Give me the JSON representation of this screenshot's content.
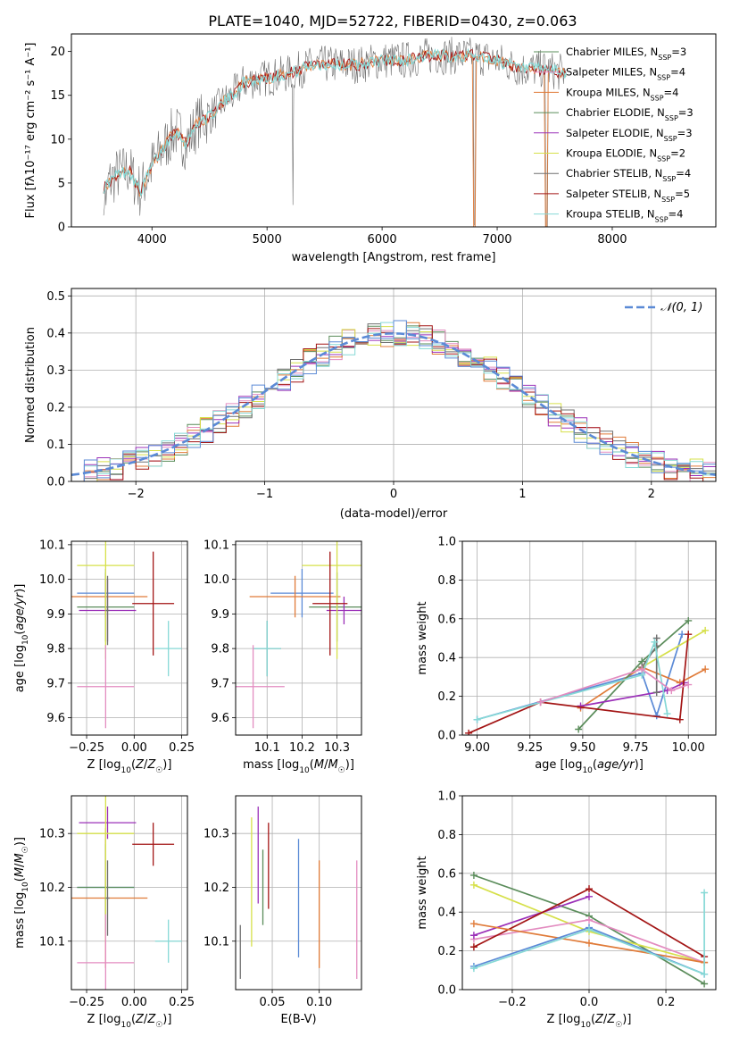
{
  "figure_title": "PLATE=1040, MJD=52722, FIBERID=0430, z=0.063",
  "colors": {
    "blue": "#5b8ad6",
    "orange": "#e07b39",
    "green": "#5a8c5a",
    "purple": "#9b30b8",
    "yellow": "#d6e04a",
    "gray": "#707070",
    "red": "#a31515",
    "cyan": "#86d9d6",
    "pink": "#e38cc0"
  },
  "chart_data": [
    {
      "type": "line",
      "panel": "spectrum",
      "xlabel": "wavelength [Angstrom, rest frame]",
      "ylabel": "Flux [fλ10⁻¹⁷ erg cm⁻² s⁻¹ A⁻¹]",
      "xlim": [
        3300,
        8900
      ],
      "ylim": [
        0,
        22
      ],
      "xticks": [
        4000,
        5000,
        6000,
        7000,
        8000
      ],
      "yticks": [
        0,
        5,
        10,
        15,
        20
      ],
      "grid": false,
      "legend_position": "right",
      "continuum": {
        "x": [
          3580,
          3700,
          3800,
          3900,
          4000,
          4100,
          4200,
          4300,
          4400,
          4500,
          4600,
          4700,
          4800,
          5000,
          5200,
          5400,
          5600,
          5800,
          6000,
          6200,
          6400,
          6600,
          6800,
          7000,
          7200,
          7400,
          7600
        ],
        "y": [
          4.5,
          6,
          6.5,
          4,
          7,
          9,
          11,
          9.5,
          12,
          12.5,
          14,
          15,
          16.5,
          17,
          17.5,
          18.5,
          18.5,
          18.5,
          19,
          19,
          19.5,
          19.5,
          19.5,
          19,
          18,
          18,
          17.5
        ]
      },
      "series": [
        {
          "name": "Chabrier MILES, N",
          "sub": "SSP",
          "suffix": "=3",
          "color": "#5a8c5a"
        },
        {
          "name": "Salpeter MILES, N",
          "sub": "SSP",
          "suffix": "=4",
          "color": "#e38cc0"
        },
        {
          "name": "Kroupa MILES, N",
          "sub": "SSP",
          "suffix": "=4",
          "color": "#e07b39"
        },
        {
          "name": "Chabrier ELODIE, N",
          "sub": "SSP",
          "suffix": "=3",
          "color": "#5a8c5a"
        },
        {
          "name": "Salpeter ELODIE, N",
          "sub": "SSP",
          "suffix": "=3",
          "color": "#9b30b8"
        },
        {
          "name": "Kroupa ELODIE, N",
          "sub": "SSP",
          "suffix": "=2",
          "color": "#d6e04a"
        },
        {
          "name": "Chabrier STELIB, N",
          "sub": "SSP",
          "suffix": "=4",
          "color": "#707070"
        },
        {
          "name": "Salpeter STELIB, N",
          "sub": "SSP",
          "suffix": "=5",
          "color": "#a31515"
        },
        {
          "name": "Kroupa STELIB, N",
          "sub": "SSP",
          "suffix": "=4",
          "color": "#86d9d6"
        }
      ]
    },
    {
      "type": "bar",
      "panel": "residuals",
      "xlabel": "(data-model)/error",
      "ylabel": "Normed distribution",
      "xlim": [
        -2.5,
        2.5
      ],
      "ylim": [
        0,
        0.52
      ],
      "xticks": [
        -2,
        -1,
        0,
        1,
        2
      ],
      "yticks": [
        0.0,
        0.1,
        0.2,
        0.3,
        0.4,
        0.5
      ],
      "grid": true,
      "legend_position": "top-right",
      "legend": "𝒩(0, 1)",
      "bin_width": 0.1,
      "normal_curve_color": "#5b8ad6"
    },
    {
      "type": "scatter",
      "panel": "age_vs_Z",
      "xlabel": "Z [log₁₀(Z/Z☉)]",
      "ylabel": "age  [log₁₀(age/yr)]",
      "xlim": [
        -0.33,
        0.28
      ],
      "ylim": [
        9.55,
        10.11
      ],
      "xticks": [
        -0.25,
        0.0,
        0.25
      ],
      "yticks": [
        9.6,
        9.7,
        9.8,
        9.9,
        10.0,
        10.1
      ],
      "grid": true,
      "points": [
        {
          "x": -0.15,
          "y": 9.96,
          "xerr": 0.15,
          "yerr": 0.07,
          "color": "#5b8ad6"
        },
        {
          "x": -0.15,
          "y": 9.95,
          "xerr": 0.22,
          "yerr": 0.06,
          "color": "#e07b39"
        },
        {
          "x": -0.15,
          "y": 9.92,
          "xerr": 0.15,
          "yerr": 0.1,
          "color": "#5a8c5a"
        },
        {
          "x": -0.14,
          "y": 9.91,
          "xerr": 0.15,
          "yerr": 0.09,
          "color": "#9b30b8"
        },
        {
          "x": -0.15,
          "y": 10.04,
          "xerr": 0.15,
          "yerr": 0.27,
          "color": "#d6e04a"
        },
        {
          "x": -0.14,
          "y": 9.91,
          "xerr": 0.01,
          "yerr": 0.1,
          "color": "#707070"
        },
        {
          "x": 0.1,
          "y": 9.93,
          "xerr": 0.11,
          "yerr": 0.15,
          "color": "#a31515"
        },
        {
          "x": 0.18,
          "y": 9.8,
          "xerr": 0.07,
          "yerr": 0.08,
          "color": "#86d9d6"
        },
        {
          "x": -0.15,
          "y": 9.69,
          "xerr": 0.15,
          "yerr": 0.12,
          "color": "#e38cc0"
        }
      ]
    },
    {
      "type": "scatter",
      "panel": "age_vs_mass",
      "xlabel": "mass [log₁₀(M/M☉)]",
      "ylabel": "",
      "xlim": [
        10.01,
        10.37
      ],
      "ylim": [
        9.55,
        10.11
      ],
      "xticks": [
        10.1,
        10.2,
        10.3
      ],
      "yticks": [
        9.6,
        9.7,
        9.8,
        9.9,
        10.0,
        10.1
      ],
      "grid": true,
      "points": [
        {
          "x": 10.2,
          "y": 9.96,
          "xerr": 0.09,
          "yerr": 0.07,
          "color": "#5b8ad6"
        },
        {
          "x": 10.18,
          "y": 9.95,
          "xerr": 0.13,
          "yerr": 0.06,
          "color": "#e07b39"
        },
        {
          "x": 10.3,
          "y": 9.92,
          "xerr": 0.08,
          "yerr": 0.1,
          "color": "#5a8c5a"
        },
        {
          "x": 10.32,
          "y": 9.91,
          "xerr": 0.05,
          "yerr": 0.04,
          "color": "#9b30b8"
        },
        {
          "x": 10.3,
          "y": 10.04,
          "xerr": 0.1,
          "yerr": 0.27,
          "color": "#d6e04a"
        },
        {
          "x": 10.1,
          "y": 9.8,
          "xerr": 0.04,
          "yerr": 0.08,
          "color": "#707070"
        },
        {
          "x": 10.28,
          "y": 9.93,
          "xerr": 0.05,
          "yerr": 0.15,
          "color": "#a31515"
        },
        {
          "x": 10.1,
          "y": 9.8,
          "xerr": 0.04,
          "yerr": 0.08,
          "color": "#86d9d6"
        },
        {
          "x": 10.06,
          "y": 9.69,
          "xerr": 0.09,
          "yerr": 0.12,
          "color": "#e38cc0"
        }
      ]
    },
    {
      "type": "line",
      "panel": "mass_weight_vs_age",
      "xlabel": "age  [log₁₀(age/yr)]",
      "ylabel": "mass weight",
      "xlim": [
        8.93,
        10.13
      ],
      "ylim": [
        0,
        1.0
      ],
      "xticks": [
        9.0,
        9.25,
        9.5,
        9.75,
        10.0
      ],
      "yticks": [
        0.0,
        0.2,
        0.4,
        0.6,
        0.8,
        1.0
      ],
      "grid": true,
      "series": [
        {
          "color": "#5b8ad6",
          "x": [
            9.0,
            9.78,
            9.85,
            9.97
          ],
          "y": [
            0.08,
            0.32,
            0.1,
            0.52
          ]
        },
        {
          "color": "#e07b39",
          "x": [
            9.49,
            9.78,
            9.96,
            10.08
          ],
          "y": [
            0.14,
            0.35,
            0.27,
            0.34
          ]
        },
        {
          "color": "#5a8c5a",
          "x": [
            9.48,
            9.78,
            10.0
          ],
          "y": [
            0.03,
            0.38,
            0.59
          ]
        },
        {
          "color": "#9b30b8",
          "x": [
            9.49,
            9.9,
            9.98
          ],
          "y": [
            0.15,
            0.23,
            0.27
          ]
        },
        {
          "color": "#d6e04a",
          "x": [
            9.78,
            10.08
          ],
          "y": [
            0.35,
            0.54
          ]
        },
        {
          "color": "#707070",
          "x": [
            9.78,
            9.85,
            9.85,
            9.85
          ],
          "y": [
            0.35,
            0.46,
            0.5,
            0.22
          ]
        },
        {
          "color": "#a31515",
          "x": [
            8.96,
            9.3,
            9.96,
            10.0
          ],
          "y": [
            0.01,
            0.17,
            0.08,
            0.52
          ]
        },
        {
          "color": "#86d9d6",
          "x": [
            9.0,
            9.78,
            9.84,
            9.9
          ],
          "y": [
            0.08,
            0.31,
            0.48,
            0.11
          ]
        },
        {
          "color": "#e38cc0",
          "x": [
            9.3,
            9.78,
            9.92,
            10.0
          ],
          "y": [
            0.17,
            0.34,
            0.23,
            0.26
          ]
        }
      ]
    },
    {
      "type": "scatter",
      "panel": "mass_vs_Z",
      "xlabel": "Z [log₁₀(Z/Z☉)]",
      "ylabel": "mass [log₁₀(M/M☉)]",
      "xlim": [
        -0.33,
        0.28
      ],
      "ylim": [
        10.01,
        10.37
      ],
      "xticks": [
        -0.25,
        0.0,
        0.25
      ],
      "yticks": [
        10.1,
        10.2,
        10.3
      ],
      "grid": true,
      "points": [
        {
          "x": -0.15,
          "y": 10.2,
          "xerr": 0.15,
          "yerr": 0.09,
          "color": "#5b8ad6"
        },
        {
          "x": -0.15,
          "y": 10.18,
          "xerr": 0.22,
          "yerr": 0.13,
          "color": "#e07b39"
        },
        {
          "x": -0.15,
          "y": 10.2,
          "xerr": 0.15,
          "yerr": 0.08,
          "color": "#5a8c5a"
        },
        {
          "x": -0.14,
          "y": 10.32,
          "xerr": 0.15,
          "yerr": 0.03,
          "color": "#9b30b8"
        },
        {
          "x": -0.15,
          "y": 10.3,
          "xerr": 0.15,
          "yerr": 0.2,
          "color": "#d6e04a"
        },
        {
          "x": -0.14,
          "y": 10.18,
          "xerr": 0.01,
          "yerr": 0.07,
          "color": "#707070"
        },
        {
          "x": 0.1,
          "y": 10.28,
          "xerr": 0.11,
          "yerr": 0.04,
          "color": "#a31515"
        },
        {
          "x": 0.18,
          "y": 10.1,
          "xerr": 0.07,
          "yerr": 0.04,
          "color": "#86d9d6"
        },
        {
          "x": -0.15,
          "y": 10.06,
          "xerr": 0.15,
          "yerr": 0.09,
          "color": "#e38cc0"
        }
      ]
    },
    {
      "type": "scatter",
      "panel": "mass_vs_EBV",
      "xlabel": "E(B-V)",
      "ylabel": "",
      "xlim": [
        0.011,
        0.145
      ],
      "ylim": [
        10.01,
        10.37
      ],
      "xticks": [
        0.05,
        0.1
      ],
      "yticks": [
        10.1,
        10.2,
        10.3
      ],
      "grid": true,
      "points": [
        {
          "x": 0.016,
          "y": 10.08,
          "yerr": 0.05,
          "color": "#707070"
        },
        {
          "x": 0.028,
          "y": 10.21,
          "yerr": 0.12,
          "color": "#d6e04a"
        },
        {
          "x": 0.035,
          "y": 10.26,
          "yerr": 0.09,
          "color": "#9b30b8"
        },
        {
          "x": 0.04,
          "y": 10.2,
          "yerr": 0.07,
          "color": "#5a8c5a"
        },
        {
          "x": 0.046,
          "y": 10.24,
          "yerr": 0.08,
          "color": "#a31515"
        },
        {
          "x": 0.078,
          "y": 10.18,
          "yerr": 0.11,
          "color": "#5b8ad6"
        },
        {
          "x": 0.1,
          "y": 10.15,
          "yerr": 0.1,
          "color": "#e07b39"
        },
        {
          "x": 0.14,
          "y": 10.14,
          "yerr": 0.11,
          "color": "#e38cc0"
        }
      ]
    },
    {
      "type": "line",
      "panel": "mass_weight_vs_Z",
      "xlabel": "Z [log₁₀(Z/Z☉)]",
      "ylabel": "mass weight",
      "xlim": [
        -0.33,
        0.33
      ],
      "ylim": [
        0,
        1.0
      ],
      "xticks": [
        -0.2,
        0.0,
        0.2
      ],
      "yticks": [
        0.0,
        0.2,
        0.4,
        0.6,
        0.8,
        1.0
      ],
      "grid": true,
      "series": [
        {
          "color": "#5a8c5a",
          "x": [
            -0.3,
            0.0,
            0.3
          ],
          "y": [
            0.59,
            0.38,
            0.03
          ]
        },
        {
          "color": "#d6e04a",
          "x": [
            -0.3,
            0.0,
            0.3
          ],
          "y": [
            0.54,
            0.3,
            0.14
          ]
        },
        {
          "color": "#e38cc0",
          "x": [
            -0.3,
            0.0,
            0.3
          ],
          "y": [
            0.26,
            0.36,
            0.14
          ]
        },
        {
          "color": "#9b30b8",
          "x": [
            -0.3,
            0.0
          ],
          "y": [
            0.28,
            0.48
          ]
        },
        {
          "color": "#a31515",
          "x": [
            -0.3,
            0.0,
            0.3
          ],
          "y": [
            0.22,
            0.52,
            0.17
          ]
        },
        {
          "color": "#e07b39",
          "x": [
            -0.3,
            0.0,
            0.3
          ],
          "y": [
            0.34,
            0.24,
            0.14
          ]
        },
        {
          "color": "#5b8ad6",
          "x": [
            -0.3,
            0.0,
            0.3
          ],
          "y": [
            0.12,
            0.32,
            0.08
          ]
        },
        {
          "color": "#86d9d6",
          "x": [
            -0.3,
            0.0,
            0.3,
            0.3
          ],
          "y": [
            0.11,
            0.31,
            0.08,
            0.5
          ]
        }
      ]
    }
  ]
}
